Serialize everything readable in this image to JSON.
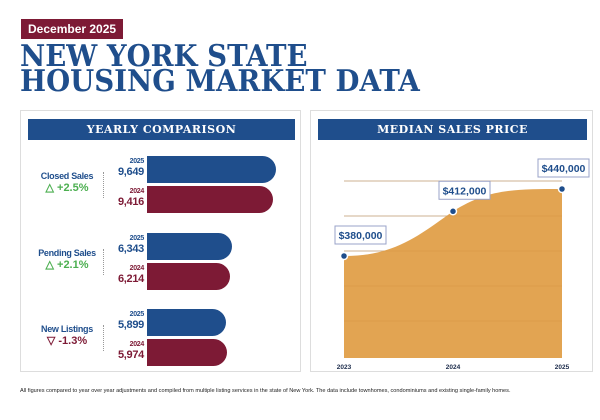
{
  "date_badge": "December 2025",
  "title_line1": "NEW YORK STATE",
  "title_line2": "HOUSING MARKET DATA",
  "colors": {
    "blue": "#1f4e8c",
    "maroon": "#7d1a35",
    "green": "#4caf50",
    "gold": "#e2a452"
  },
  "yearly": {
    "heading": "YEARLY COMPARISON",
    "metrics": [
      {
        "label": "Closed Sales",
        "change": "+2.5%",
        "direction": "up",
        "current_year": "2025",
        "current": "9,649",
        "current_value": 9649,
        "prior_year": "2024",
        "prior": "9,416",
        "prior_value": 9416
      },
      {
        "label": "Pending Sales",
        "change": "+2.1%",
        "direction": "up",
        "current_year": "2025",
        "current": "6,343",
        "current_value": 6343,
        "prior_year": "2024",
        "prior": "6,214",
        "prior_value": 6214
      },
      {
        "label": "New Listings",
        "change": "-1.3%",
        "direction": "down",
        "current_year": "2025",
        "current": "5,899",
        "current_value": 5899,
        "prior_year": "2024",
        "prior": "5,974",
        "prior_value": 5974
      }
    ]
  },
  "chart_data": {
    "type": "area",
    "title": "MEDIAN SALES PRICE",
    "categories": [
      "2023",
      "2024",
      "2025"
    ],
    "values": [
      380000,
      412000,
      440000
    ],
    "data_labels": [
      "$380,000",
      "$412,000",
      "$440,000"
    ],
    "grid": true
  },
  "footer": "All figures compared to year over year adjustments and compiled from multiple listing services in the state of New York.  The data include townhomes, condominiums and existing single-family homes."
}
